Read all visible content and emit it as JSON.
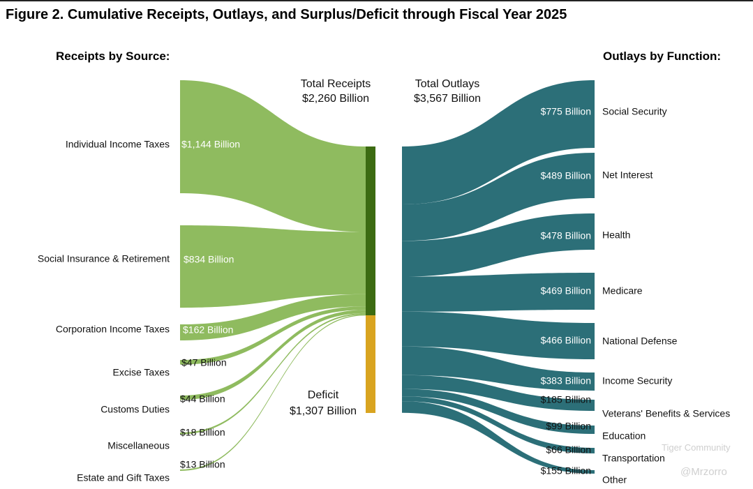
{
  "title": "Figure 2. Cumulative Receipts, Outlays, and Surplus/Deficit through Fiscal Year 2025",
  "receipts_header": "Receipts by Source:",
  "outlays_header": "Outlays by Function:",
  "total_receipts": {
    "label": "Total Receipts",
    "value": "$2,260 Billion"
  },
  "total_outlays": {
    "label": "Total Outlays",
    "value": "$3,567 Billion"
  },
  "deficit": {
    "label": "Deficit",
    "value": "$1,307 Billion"
  },
  "watermark": {
    "community": "Tiger Community",
    "handle": "@Mrzorro"
  },
  "colors": {
    "receipts": "#8fbb5f",
    "receipts_bar": "#3c6b12",
    "deficit": "#d9a420",
    "outlays": "#2c6f78"
  },
  "chart_data": {
    "type": "sankey",
    "title": "Figure 2. Cumulative Receipts, Outlays, and Surplus/Deficit through Fiscal Year 2025",
    "units": "Billion USD",
    "receipts": [
      {
        "name": "Individual Income Taxes",
        "value": 1144,
        "label": "$1,144 Billion"
      },
      {
        "name": "Social Insurance & Retirement",
        "value": 834,
        "label": "$834 Billion"
      },
      {
        "name": "Corporation Income Taxes",
        "value": 162,
        "label": "$162 Billion"
      },
      {
        "name": "Excise Taxes",
        "value": 47,
        "label": "$47 Billion"
      },
      {
        "name": "Customs Duties",
        "value": 44,
        "label": "$44 Billion"
      },
      {
        "name": "Miscellaneous",
        "value": 18,
        "label": "$18 Billion"
      },
      {
        "name": "Estate and Gift Taxes",
        "value": 13,
        "label": "$13 Billion"
      }
    ],
    "total_receipts": 2260,
    "deficit": 1307,
    "total_outlays": 3567,
    "outlays": [
      {
        "name": "Social Security",
        "value": 775,
        "label": "$775 Billion"
      },
      {
        "name": "Net Interest",
        "value": 489,
        "label": "$489 Billion"
      },
      {
        "name": "Health",
        "value": 478,
        "label": "$478 Billion"
      },
      {
        "name": "Medicare",
        "value": 469,
        "label": "$469 Billion"
      },
      {
        "name": "National Defense",
        "value": 466,
        "label": "$466 Billion"
      },
      {
        "name": "Income Security",
        "value": 383,
        "label": "$383 Billion"
      },
      {
        "name": "Veterans' Benefits & Services",
        "value": 185,
        "label": "$185 Billion"
      },
      {
        "name": "Education",
        "value": 99,
        "label": "$99 Billion"
      },
      {
        "name": "Transportation",
        "value": 66,
        "label": "$66 Billion"
      },
      {
        "name": "Other",
        "value": 155,
        "label": "$155 Billion"
      }
    ]
  }
}
